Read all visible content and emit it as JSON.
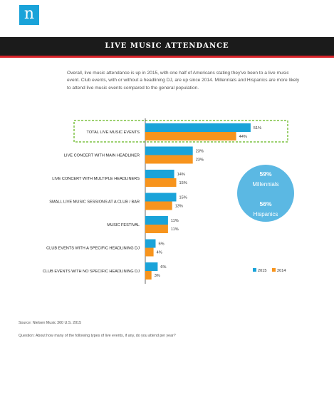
{
  "logo": {
    "letter": "n",
    "icon": "nielsen-logo-icon"
  },
  "banner": {
    "title": "LIVE MUSIC ATTENDANCE"
  },
  "intro": "Overall, live music attendance is up in 2015, with one half of Americans stating they've been to a live music event. Club events, with or without a headlining DJ, are up since 2014. Millennials and Hispanics are more likely to attend live music events compared to the general population.",
  "chart_data": {
    "type": "bar",
    "orientation": "horizontal",
    "categories": [
      "TOTAL LIVE MUSIC EVENTS",
      "LIVE CONCERT WITH MAIN HEADLINER",
      "LIVE CONCERT WITH MULTIPLE HEADLINERS",
      "SMALL LIVE MUSIC SESSIONS AT A CLUB / BAR",
      "MUSIC FESTIVAL",
      "CLUB EVENTS WITH A SPECIFIC HEADLINING DJ",
      "CLUB EVENTS WITH NO SPECIFIC HEADLINING DJ"
    ],
    "series": [
      {
        "name": "2015",
        "color": "#1aa3d9",
        "values": [
          51,
          23,
          14,
          15,
          11,
          5,
          6
        ],
        "labels": [
          "51%",
          "23%",
          "14%",
          "15%",
          "11%",
          "5%",
          "6%"
        ]
      },
      {
        "name": "2014",
        "color": "#f7941d",
        "values": [
          44,
          23,
          15,
          13,
          11,
          4,
          3
        ],
        "labels": [
          "44%",
          "23%",
          "15%",
          "13%",
          "11%",
          "4%",
          "3%"
        ]
      }
    ],
    "highlight_category": "TOTAL LIVE MUSIC EVENTS",
    "highlight_color": "#7dc242",
    "legend_position": "bottom-right",
    "callout": {
      "color": "#5bb8e3",
      "items": [
        {
          "value": "59%",
          "label": "Millennials"
        },
        {
          "value": "56%",
          "label": "Hispanics"
        }
      ]
    }
  },
  "footer": {
    "source": "Source: Nielsen Music 360 U.S. 2015",
    "question": "Question: About how many of the following types of live events, if any, do you attend per year?"
  }
}
